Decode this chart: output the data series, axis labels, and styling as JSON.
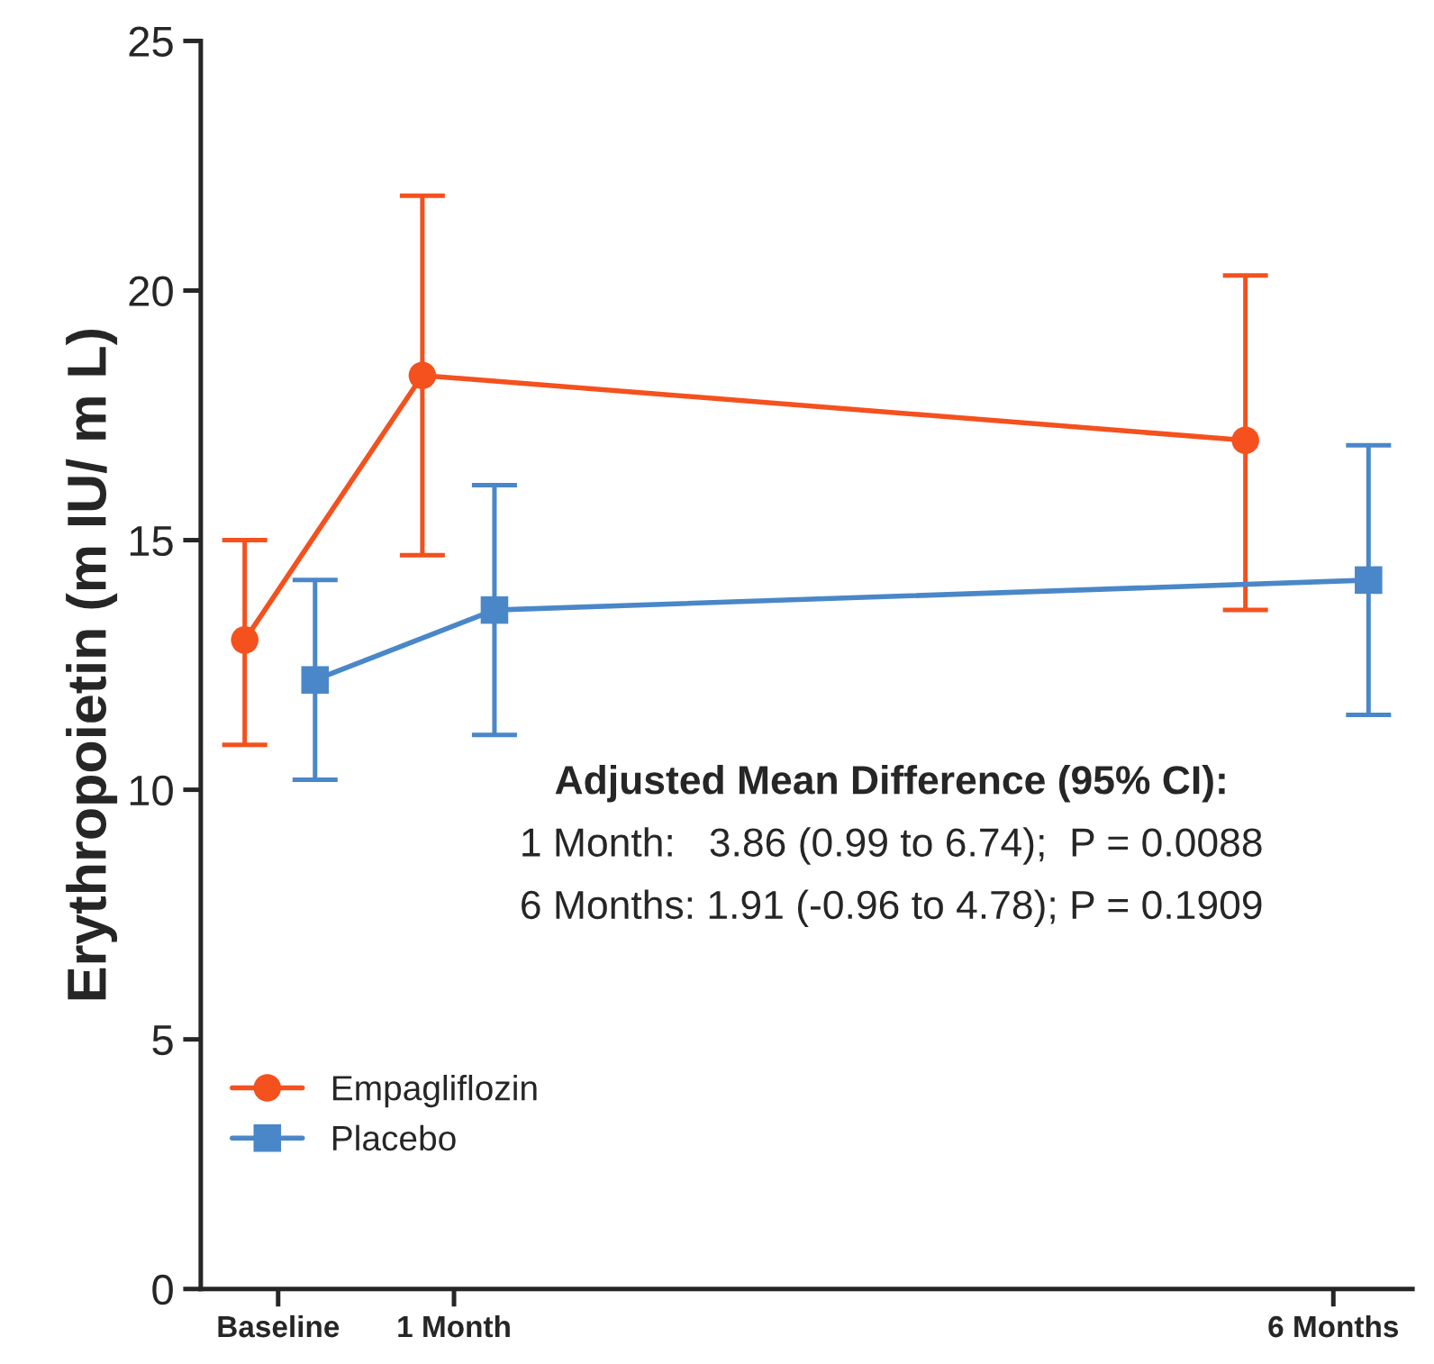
{
  "chart_data": {
    "type": "line",
    "ylabel": "Erythropoietin (m IU/ m L)",
    "xlim": [
      -0.44,
      6.45
    ],
    "xticks": [
      {
        "value": 0,
        "label": "Baseline"
      },
      {
        "value": 1,
        "label": "1 Month"
      },
      {
        "value": 6,
        "label": "6 Months"
      }
    ],
    "ylim": [
      0,
      25
    ],
    "yticks": [
      0,
      5,
      10,
      15,
      20,
      25
    ],
    "series": [
      {
        "name": "Empagliflozin",
        "color": "#f4511e",
        "marker": "circle",
        "x": [
          -0.19,
          0.82,
          5.5
        ],
        "values": [
          13.0,
          18.3,
          17.0
        ],
        "errors": [
          [
            10.9,
            15.0
          ],
          [
            14.7,
            21.9
          ],
          [
            13.6,
            20.3
          ]
        ]
      },
      {
        "name": "Placebo",
        "color": "#4a87c8",
        "marker": "square",
        "x": [
          0.21,
          1.23,
          6.2
        ],
        "values": [
          12.2,
          13.6,
          14.2
        ],
        "errors": [
          [
            10.2,
            14.2
          ],
          [
            11.1,
            16.1
          ],
          [
            11.5,
            16.9
          ]
        ]
      }
    ],
    "annotations": [
      "Adjusted Mean Difference (95% CI):",
      "1 Month:   3.86 (0.99 to 6.74);  P = 0.0088",
      "6 Months: 1.91 (-0.96 to 4.78); P = 0.1909"
    ],
    "legend": "bottom left",
    "grid": false,
    "line_style": "solid"
  }
}
